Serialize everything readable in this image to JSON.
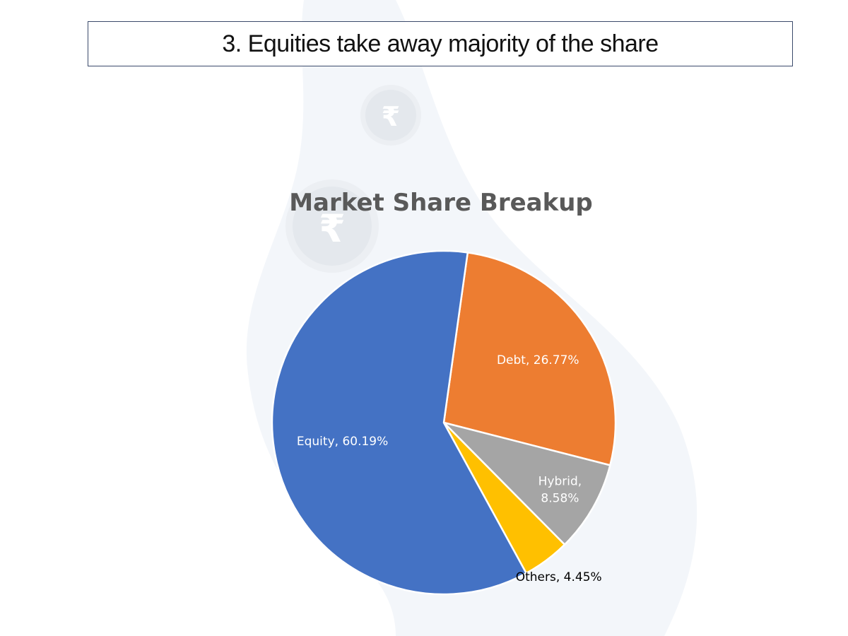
{
  "page": {
    "headline": "3. Equities take away majority of the share"
  },
  "background": {
    "icons": [
      "rupee-icon",
      "rupee-hand-icon"
    ]
  },
  "chart_data": {
    "type": "pie",
    "title": "Market Share Breakup",
    "slices": [
      {
        "label": "Equity",
        "value": 60.19,
        "display": "Equity, 60.19%",
        "color": "#4472C4",
        "label_color": "#ffffff"
      },
      {
        "label": "Debt",
        "value": 26.77,
        "display": "Debt, 26.77%",
        "color": "#ED7D31",
        "label_color": "#ffffff"
      },
      {
        "label": "Hybrid",
        "value": 8.58,
        "display": "Hybrid, 8.58%",
        "color": "#A5A5A5",
        "label_color": "#ffffff"
      },
      {
        "label": "Others",
        "value": 4.45,
        "display": "Others, 4.45%",
        "color": "#FFC000",
        "label_color": "#000000"
      }
    ],
    "legend": "none",
    "label_position": "inside"
  }
}
